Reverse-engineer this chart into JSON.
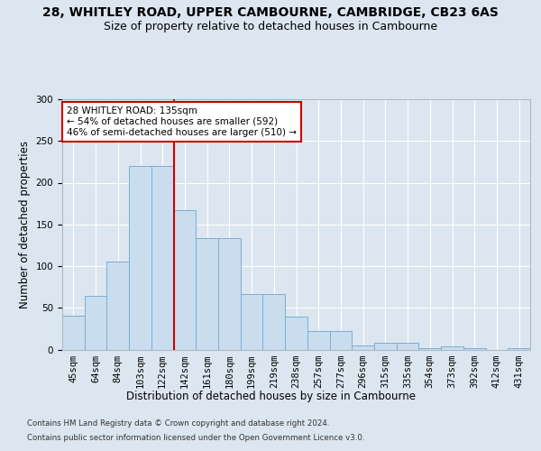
{
  "title": "28, WHITLEY ROAD, UPPER CAMBOURNE, CAMBRIDGE, CB23 6AS",
  "subtitle": "Size of property relative to detached houses in Cambourne",
  "xlabel": "Distribution of detached houses by size in Cambourne",
  "ylabel": "Number of detached properties",
  "footer_line1": "Contains HM Land Registry data © Crown copyright and database right 2024.",
  "footer_line2": "Contains public sector information licensed under the Open Government Licence v3.0.",
  "categories": [
    "45sqm",
    "64sqm",
    "84sqm",
    "103sqm",
    "122sqm",
    "142sqm",
    "161sqm",
    "180sqm",
    "199sqm",
    "219sqm",
    "238sqm",
    "257sqm",
    "277sqm",
    "296sqm",
    "315sqm",
    "335sqm",
    "354sqm",
    "373sqm",
    "392sqm",
    "412sqm",
    "431sqm"
  ],
  "values": [
    41,
    64,
    105,
    220,
    220,
    167,
    133,
    133,
    67,
    67,
    40,
    22,
    22,
    5,
    8,
    8,
    2,
    4,
    2,
    0,
    2
  ],
  "bar_color": "#c9ddef",
  "bar_edge_color": "#7aadd4",
  "property_line_x": 4.5,
  "property_line_label": "28 WHITLEY ROAD: 135sqm",
  "annotation_line1": "← 54% of detached houses are smaller (592)",
  "annotation_line2": "46% of semi-detached houses are larger (510) →",
  "annotation_box_facecolor": "#ffffff",
  "annotation_box_edgecolor": "#cc0000",
  "property_line_color": "#cc0000",
  "ylim": [
    0,
    300
  ],
  "yticks": [
    0,
    50,
    100,
    150,
    200,
    250,
    300
  ],
  "background_color": "#dce6f0",
  "axes_background_color": "#dce6f0",
  "grid_color": "#ffffff",
  "title_fontsize": 10,
  "subtitle_fontsize": 9,
  "tick_fontsize": 7.5,
  "ylabel_fontsize": 8.5,
  "xlabel_fontsize": 8.5,
  "footer_fontsize": 6.2,
  "annot_fontsize": 7.5
}
